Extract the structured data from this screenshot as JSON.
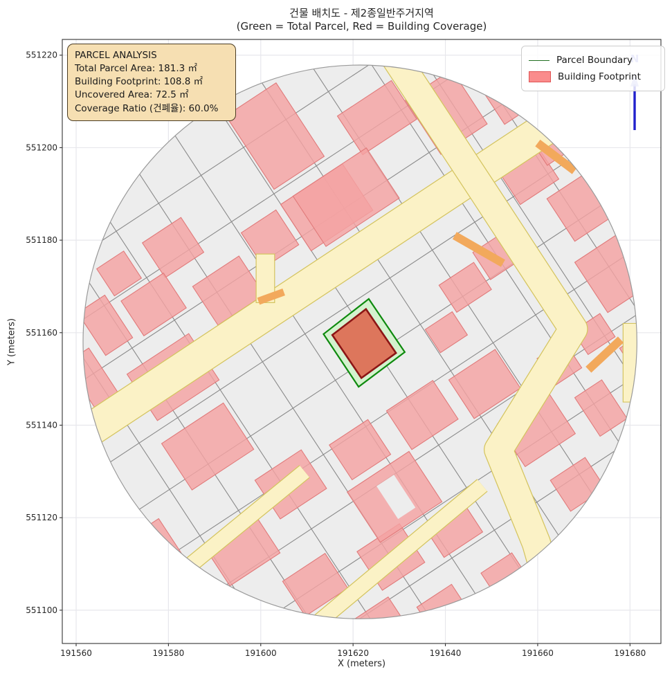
{
  "title": {
    "line1": "건물 배치도 - 제2종일반주거지역",
    "line2": "(Green = Total Parcel, Red = Building Coverage)"
  },
  "axis": {
    "xlabel": "X (meters)",
    "ylabel": "Y (meters)"
  },
  "info_box": {
    "lines": [
      "PARCEL ANALYSIS",
      "Total Parcel Area: 181.3 ㎡",
      "Building Footprint: 108.8 ㎡",
      "Uncovered Area: 72.5 ㎡",
      "Coverage Ratio (건폐율): 60.0%"
    ]
  },
  "legend": {
    "items": [
      {
        "label": "Parcel Boundary",
        "type": "line",
        "color": "#1f6e1f"
      },
      {
        "label": "Building Footprint",
        "type": "patch",
        "fill": "#FA8C8C",
        "edge": "#E05353"
      }
    ]
  },
  "north_arrow": {
    "label": "N",
    "color": "#2121CC"
  },
  "chart_data": {
    "type": "map",
    "title": "건물 배치도 - 제2종일반주거지역\n(Green = Total Parcel, Red = Building Coverage)",
    "xlabel": "X (meters)",
    "ylabel": "Y (meters)",
    "xlim": [
      191557.0,
      191686.7
    ],
    "ylim": [
      551092.8,
      551223.4
    ],
    "x_ticks": [
      191560,
      191580,
      191600,
      191620,
      191640,
      191660,
      191680
    ],
    "y_ticks": [
      551100,
      551120,
      551140,
      551160,
      551180,
      551200,
      551220
    ],
    "grid": true,
    "analysis": {
      "total_parcel_area_m2": 181.3,
      "building_footprint_m2": 108.8,
      "uncovered_area_m2": 72.5,
      "coverage_ratio_pct": 60.0
    },
    "map": {
      "center": [
        191621.5,
        551158.0
      ],
      "radius_m": 60,
      "grid_angle_deg": 33.3,
      "colors": {
        "parcel_bg": "#EDEDED",
        "parcel_line": "#8A8A8A",
        "circle_edge": "#9A9A9A",
        "building_fill": "#F4A2A2",
        "building_edge": "#E07A7A",
        "road_fill": "#FBF2C6",
        "road_edge": "#D4C45F",
        "orange": "#F2A95C",
        "target_parcel_fill": "#D4F2CE",
        "target_parcel_edge": "#0E8A0E",
        "target_building_fill": "#DD6F55",
        "target_building_edge": "#8C1515",
        "figure_grid": "#E7E7EC",
        "spine": "#333333"
      },
      "target_parcel_polygon": [
        [
          191623.4,
          551167.3
        ],
        [
          191613.6,
          551159.7
        ],
        [
          191621.2,
          551148.3
        ],
        [
          191631.2,
          551155.8
        ]
      ],
      "target_building_polygon": [
        [
          191622.8,
          551165.1
        ],
        [
          191615.5,
          551159.5
        ],
        [
          191621.8,
          551150.2
        ],
        [
          191629.3,
          551155.6
        ]
      ],
      "roads_band_format": "[[x1,y1],[x2,y2],...] polyline in meters + width_m",
      "roads": [
        {
          "pts": [
            [
              191663.0,
              551205.0
            ],
            [
              191557.0,
              551135.0
            ]
          ],
          "w": 7.0
        },
        {
          "pts": [
            [
              191626.5,
              551223.5
            ],
            [
              191648.5,
              551190.1
            ],
            [
              191667.7,
              551160.8
            ],
            [
              191651.5,
              551134.7
            ],
            [
              191659.7,
              551114.5
            ],
            [
              191663.0,
              551103.0
            ]
          ],
          "w": 6.0
        },
        {
          "pts": [
            [
              191609.5,
              551130.0
            ],
            [
              191576.5,
              551103.0
            ]
          ],
          "w": 3.2
        },
        {
          "pts": [
            [
              191648.0,
              551127.0
            ],
            [
              191612.0,
              551097.0
            ]
          ],
          "w": 3.2
        }
      ],
      "road_polygons": [
        [
          [
            191599.0,
            551166.5
          ],
          [
            191603.0,
            551166.5
          ],
          [
            191603.0,
            551177.0
          ],
          [
            191599.0,
            551177.0
          ]
        ],
        [
          [
            191678.5,
            551145.0
          ],
          [
            191682.7,
            551145.0
          ],
          [
            191682.7,
            551162.0
          ],
          [
            191678.5,
            551162.0
          ]
        ]
      ],
      "orange_strips": [
        {
          "pts": [
            [
              191642.0,
              551181.0
            ],
            [
              191652.5,
              551175.0
            ]
          ],
          "w": 1.8
        },
        {
          "pts": [
            [
              191660.0,
              551201.0
            ],
            [
              191668.0,
              551195.0
            ]
          ],
          "w": 1.8
        },
        {
          "pts": [
            [
              191671.0,
              551152.0
            ],
            [
              191678.0,
              551158.5
            ]
          ],
          "w": 1.8
        },
        {
          "pts": [
            [
              191599.5,
              551166.8
            ],
            [
              191605.0,
              551168.8
            ]
          ],
          "w": 1.6
        }
      ],
      "parcel_grid_u_offsets": [
        -52,
        -42,
        -31,
        -20,
        -9,
        2,
        13,
        24,
        35,
        45,
        54
      ],
      "parcel_grid_v_offsets": [
        -49,
        -37,
        -26,
        -8,
        4,
        16,
        28,
        39,
        50
      ],
      "buildings_format": "[center_x_m, center_y_m, width_m, depth_m]",
      "buildings": [
        [
          191603.1,
          551202.5,
          13,
          19
        ],
        [
          191614.3,
          551187.1,
          16,
          12
        ],
        [
          191602.0,
          551180.3,
          9,
          9
        ],
        [
          191593.0,
          551169.1,
          12,
          10
        ],
        [
          191581.0,
          551178.4,
          10,
          9
        ],
        [
          191576.8,
          551166.1,
          11,
          9
        ],
        [
          191569.3,
          551172.8,
          7,
          7
        ],
        [
          191566.3,
          551161.6,
          7,
          11
        ],
        [
          191563.8,
          551149.6,
          6,
          13
        ],
        [
          191581.0,
          551150.4,
          16,
          12
        ],
        [
          191625.2,
          551206.5,
          14,
          10
        ],
        [
          191618.5,
          551189.3,
          19,
          13
        ],
        [
          191640.2,
          551207.7,
          12,
          14
        ],
        [
          191653.7,
          551211.0,
          8,
          9
        ],
        [
          191658.2,
          551193.8,
          10,
          8
        ],
        [
          191669.2,
          551187.1,
          10,
          11
        ],
        [
          191676.2,
          551172.8,
          11,
          13
        ],
        [
          191672.2,
          551159.7,
          7,
          6
        ],
        [
          191683.0,
          551154.1,
          6,
          10
        ],
        [
          191588.5,
          551135.4,
          16,
          12
        ],
        [
          191606.5,
          551127.2,
          12,
          10
        ],
        [
          191621.5,
          551134.7,
          10,
          9
        ],
        [
          191635.0,
          551142.2,
          12,
          10
        ],
        [
          191648.5,
          551148.9,
          12,
          10
        ],
        [
          191640.2,
          551160.1,
          7,
          6
        ],
        [
          191659.7,
          551139.2,
          13,
          11
        ],
        [
          191673.7,
          551143.7,
          7,
          10
        ],
        [
          191664.7,
          551153.4,
          7,
          7
        ],
        [
          191596.0,
          551113.0,
          13,
          10
        ],
        [
          191611.8,
          551105.5,
          11,
          9
        ],
        [
          191628.2,
          551111.5,
          11,
          10
        ],
        [
          191641.7,
          551117.5,
          10,
          8
        ],
        [
          191625.2,
          551096.5,
          11,
          8
        ],
        [
          191608.8,
          551093.5,
          8,
          6
        ],
        [
          191639.5,
          551100.2,
          9,
          7
        ],
        [
          191652.7,
          551107.7,
          8,
          6
        ],
        [
          191588.2,
          551101.3,
          8,
          8
        ],
        [
          191577.7,
          551113.7,
          7,
          10
        ],
        [
          191668.7,
          551127.2,
          9,
          8
        ],
        [
          191644.3,
          551169.8,
          9,
          7
        ],
        [
          191651.2,
          551176.6,
          8,
          7
        ],
        [
          191663.5,
          551201.3,
          8,
          7
        ],
        [
          191629.0,
          551124.5,
          16,
          13
        ]
      ],
      "courtyards": [
        [
          191629.3,
          551124.5,
          4.5,
          8.5
        ]
      ]
    }
  }
}
